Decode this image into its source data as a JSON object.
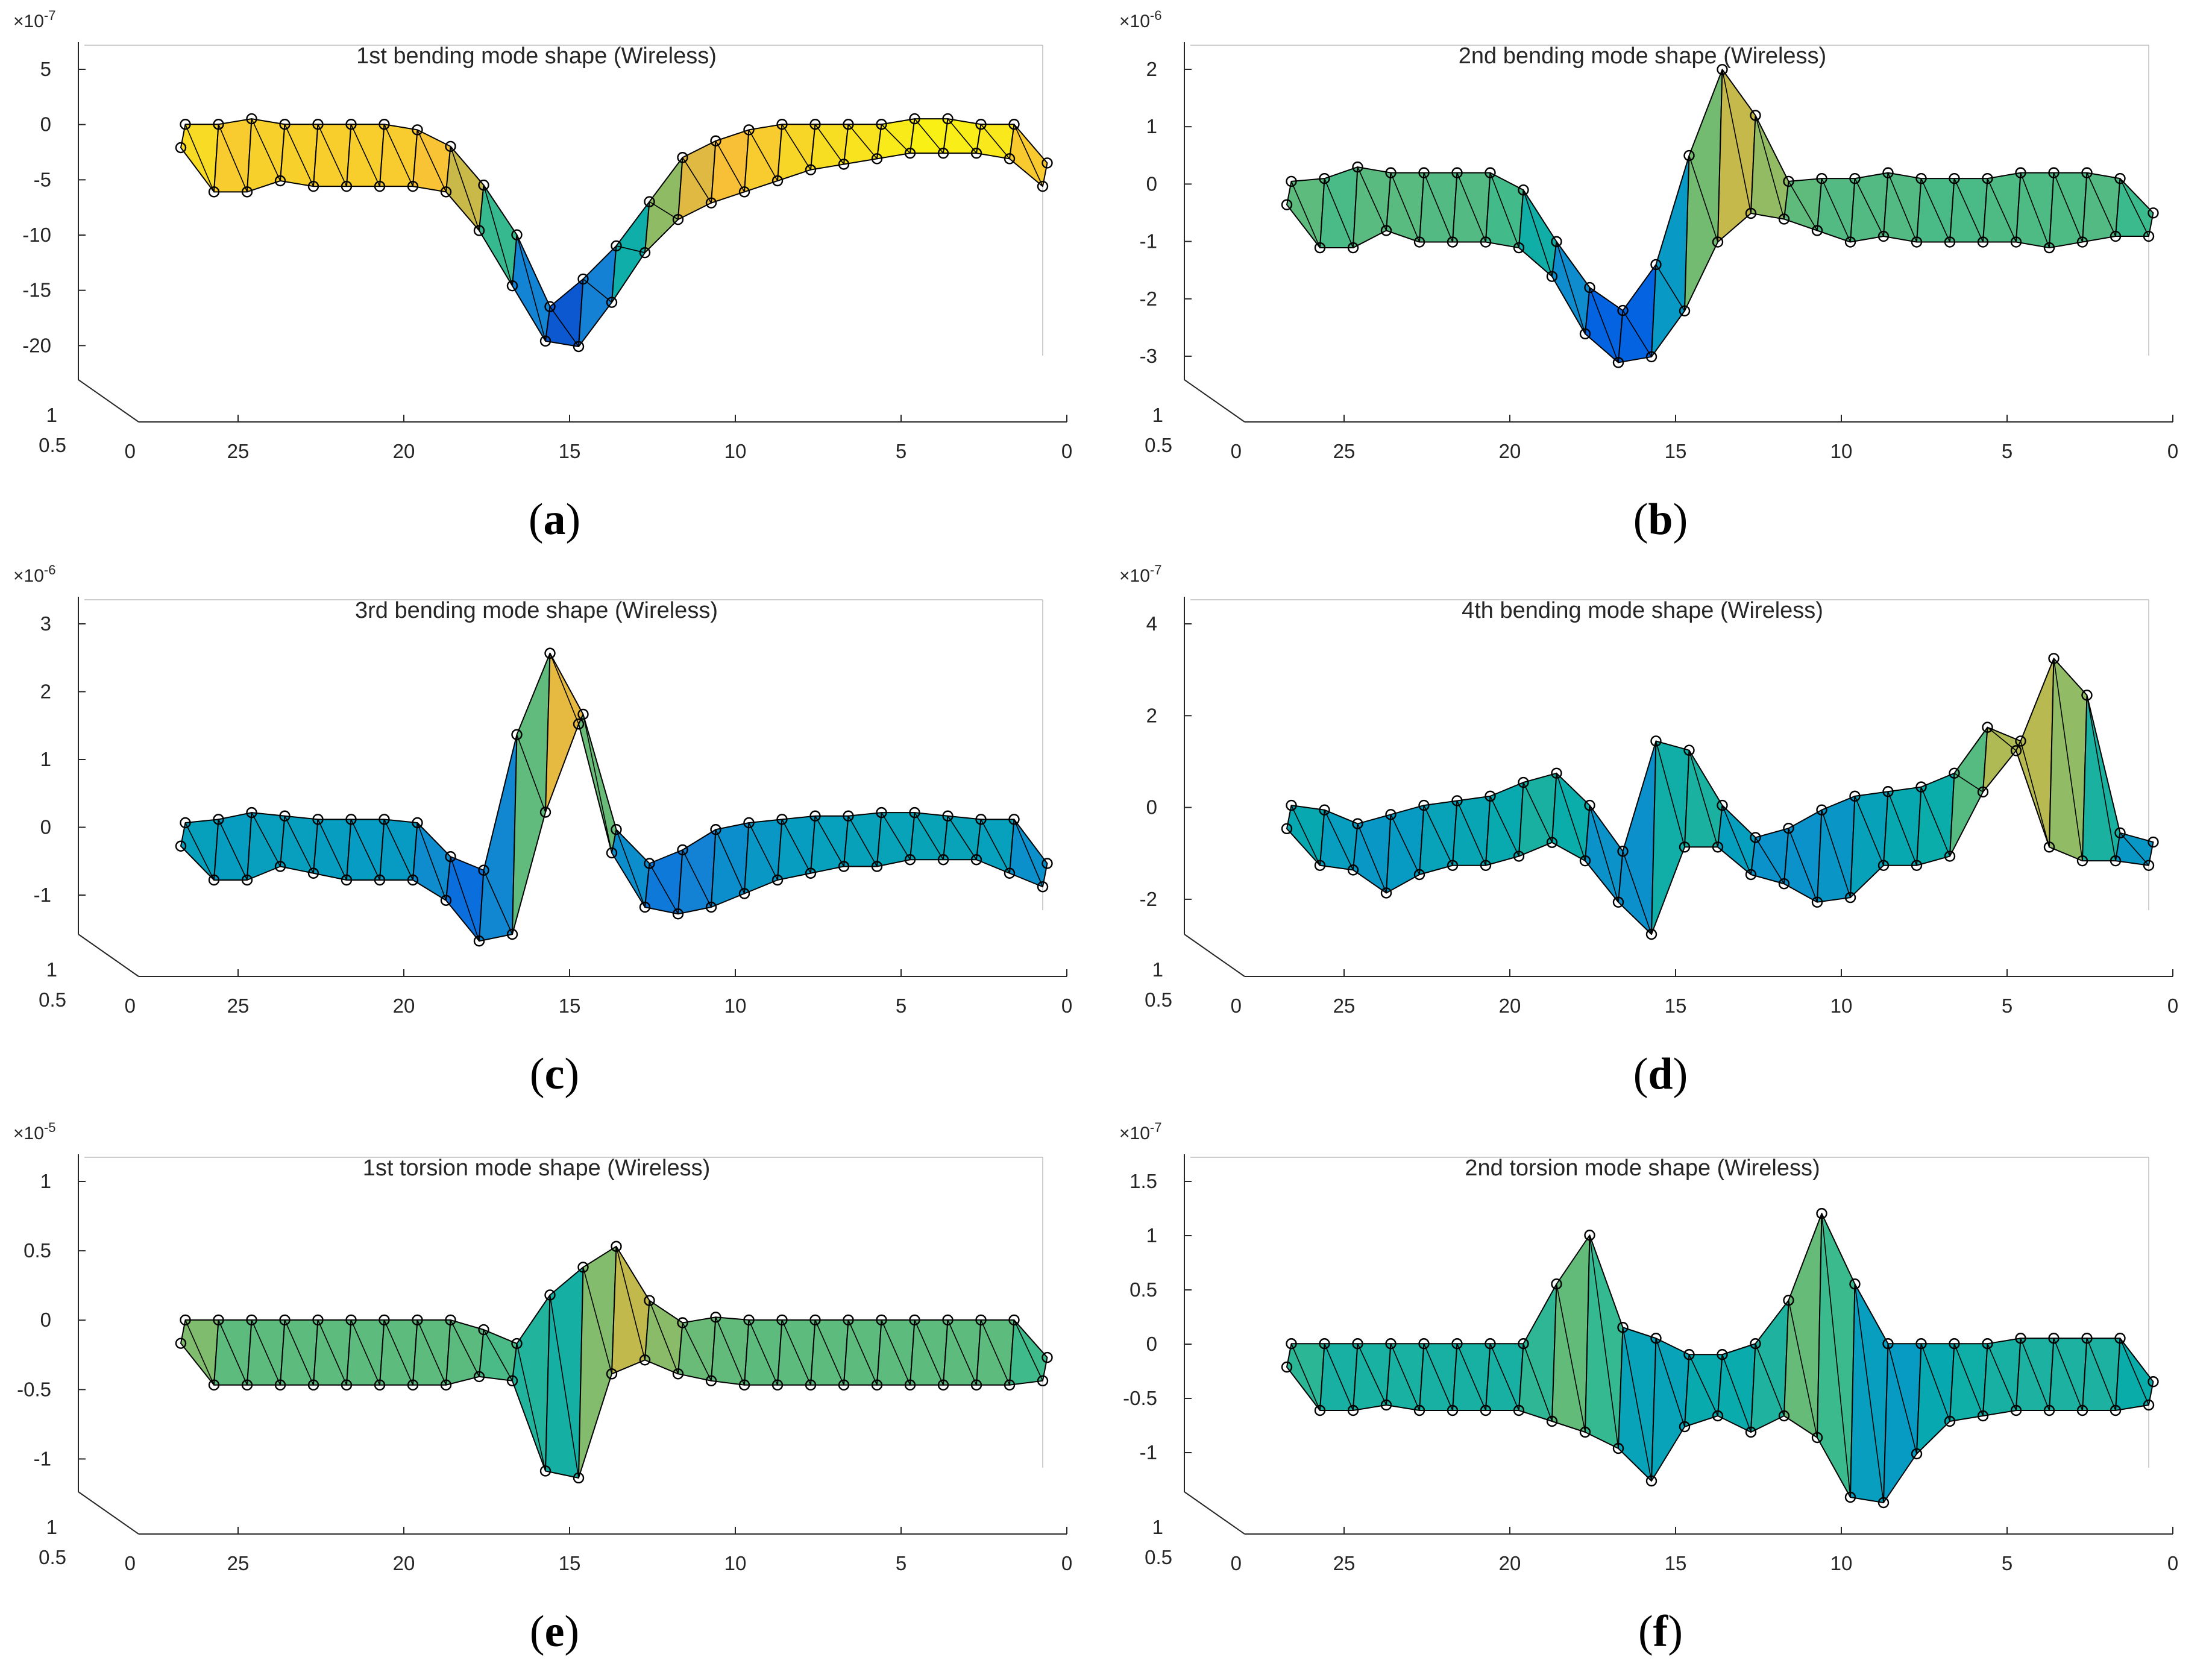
{
  "figure": {
    "panels": [
      {
        "id": "a",
        "label": "a"
      },
      {
        "id": "b",
        "label": "b"
      },
      {
        "id": "c",
        "label": "c"
      },
      {
        "id": "d",
        "label": "d"
      },
      {
        "id": "e",
        "label": "e"
      },
      {
        "id": "f",
        "label": "f"
      }
    ]
  },
  "chart_data": [
    {
      "type": "surface3d",
      "title": "1st bending mode shape (Wireless)",
      "exponent": "×10",
      "exponent_power": "-7",
      "zlim": [
        -22,
        5
      ],
      "z_ticks": [
        "5",
        "0",
        "-5",
        "-10",
        "-15",
        "-20"
      ],
      "z_tick_values": [
        5,
        0,
        -5,
        -10,
        -15,
        -20
      ],
      "x_ticks": [
        "25",
        "20",
        "15",
        "10",
        "5",
        "0"
      ],
      "x_tick_values": [
        25,
        20,
        15,
        10,
        5,
        0
      ],
      "xlim": [
        28,
        0
      ],
      "y_ticks": [
        "1",
        "0.5",
        "0"
      ],
      "x": [
        27,
        26,
        25,
        24,
        23,
        22,
        21,
        20,
        19,
        18,
        17,
        16,
        15,
        14,
        13,
        12,
        11,
        10,
        9,
        8,
        7,
        6,
        5,
        4,
        3,
        2,
        1
      ],
      "series": [
        {
          "values": [
            -1.0,
            -1.0,
            -0.5,
            -1.0,
            -1.0,
            -1.0,
            -1.0,
            -1.5,
            -3.0,
            -6.5,
            -11.0,
            -17.5,
            -15.0,
            -12.0,
            -8.0,
            -4.0,
            -2.5,
            -1.5,
            -1.0,
            -1.0,
            -1.0,
            -1.0,
            -0.5,
            -0.5,
            -1.0,
            -1.0,
            -4.5
          ]
        },
        {
          "values": [
            -1.0,
            -5.0,
            -5.0,
            -4.0,
            -4.5,
            -4.5,
            -4.5,
            -4.5,
            -5.0,
            -8.5,
            -13.5,
            -18.5,
            -19.0,
            -15.0,
            -10.5,
            -7.5,
            -6.0,
            -5.0,
            -4.0,
            -3.0,
            -2.5,
            -2.0,
            -1.5,
            -1.5,
            -1.5,
            -2.0,
            -4.5
          ]
        }
      ]
    },
    {
      "type": "surface3d",
      "title": "2nd bending mode shape (Wireless)",
      "exponent": "×10",
      "exponent_power": "-6",
      "zlim": [
        -3.2,
        2
      ],
      "z_ticks": [
        "2",
        "1",
        "0",
        "-1",
        "-2",
        "-3"
      ],
      "z_tick_values": [
        2,
        1,
        0,
        -1,
        -2,
        -3
      ],
      "x_ticks": [
        "25",
        "20",
        "15",
        "10",
        "5",
        "0"
      ],
      "x_tick_values": [
        25,
        20,
        15,
        10,
        5,
        0
      ],
      "xlim": [
        28,
        0
      ],
      "y_ticks": [
        "1",
        "0.5",
        "0"
      ],
      "x": [
        27,
        26,
        25,
        24,
        23,
        22,
        21,
        20,
        19,
        18,
        17,
        16,
        15,
        14,
        13,
        12,
        11,
        10,
        9,
        8,
        7,
        6,
        5,
        4,
        3,
        2,
        1
      ],
      "series": [
        {
          "values": [
            -0.15,
            -0.1,
            0.1,
            0.0,
            0.0,
            0.0,
            0.0,
            -0.3,
            -1.2,
            -2.0,
            -2.4,
            -1.6,
            0.3,
            1.8,
            1.0,
            -0.15,
            -0.1,
            -0.1,
            0.0,
            -0.1,
            -0.1,
            -0.1,
            0.0,
            0.0,
            0.0,
            -0.1,
            -0.7
          ]
        },
        {
          "values": [
            -0.15,
            -0.9,
            -0.9,
            -0.6,
            -0.8,
            -0.8,
            -0.8,
            -0.9,
            -1.4,
            -2.4,
            -2.9,
            -2.8,
            -2.0,
            -0.8,
            -0.3,
            -0.4,
            -0.6,
            -0.8,
            -0.7,
            -0.8,
            -0.8,
            -0.8,
            -0.8,
            -0.9,
            -0.8,
            -0.7,
            -0.7
          ]
        }
      ]
    },
    {
      "type": "surface3d",
      "title": "3rd bending mode shape (Wireless)",
      "exponent": "×10",
      "exponent_power": "-6",
      "zlim": [
        -1.4,
        3
      ],
      "z_ticks": [
        "3",
        "2",
        "1",
        "0",
        "-1"
      ],
      "z_tick_values": [
        3,
        2,
        1,
        0,
        -1
      ],
      "x_ticks": [
        "25",
        "20",
        "15",
        "10",
        "5",
        "0"
      ],
      "x_tick_values": [
        25,
        20,
        15,
        10,
        5,
        0
      ],
      "xlim": [
        28,
        0
      ],
      "y_ticks": [
        "1",
        "0.5",
        "0"
      ],
      "x": [
        27,
        26,
        25,
        24,
        23,
        22,
        21,
        20,
        19,
        18,
        17,
        16,
        15,
        14,
        13,
        12,
        11,
        10,
        9,
        8,
        7,
        6,
        5,
        4,
        3,
        2,
        1
      ],
      "series": [
        {
          "values": [
            -0.1,
            -0.05,
            0.05,
            0.0,
            -0.05,
            -0.05,
            -0.05,
            -0.1,
            -0.6,
            -0.8,
            1.2,
            2.4,
            1.5,
            -0.2,
            -0.7,
            -0.5,
            -0.2,
            -0.1,
            -0.05,
            0.0,
            0.0,
            0.05,
            0.05,
            0.0,
            -0.05,
            -0.05,
            -0.7
          ]
        },
        {
          "values": [
            -0.1,
            -0.6,
            -0.6,
            -0.4,
            -0.5,
            -0.6,
            -0.6,
            -0.6,
            -0.9,
            -1.5,
            -1.4,
            0.4,
            1.7,
            -0.2,
            -1.0,
            -1.1,
            -1.0,
            -0.8,
            -0.6,
            -0.5,
            -0.4,
            -0.4,
            -0.3,
            -0.3,
            -0.3,
            -0.5,
            -0.7
          ]
        }
      ]
    },
    {
      "type": "surface3d",
      "title": "4th bending mode shape (Wireless)",
      "exponent": "×10",
      "exponent_power": "-7",
      "zlim": [
        -2.5,
        4
      ],
      "z_ticks": [
        "4",
        "2",
        "0",
        "-2"
      ],
      "z_tick_values": [
        4,
        2,
        0,
        -2
      ],
      "x_ticks": [
        "25",
        "20",
        "15",
        "10",
        "5",
        "0"
      ],
      "x_tick_values": [
        25,
        20,
        15,
        10,
        5,
        0
      ],
      "xlim": [
        28,
        0
      ],
      "y_ticks": [
        "1",
        "0.5",
        "0"
      ],
      "x": [
        27,
        26,
        25,
        24,
        23,
        22,
        21,
        20,
        19,
        18,
        17,
        16,
        15,
        14,
        13,
        12,
        11,
        10,
        9,
        8,
        7,
        6,
        5,
        4,
        3,
        2,
        1
      ],
      "series": [
        {
          "values": [
            -0.2,
            -0.3,
            -0.6,
            -0.4,
            -0.2,
            -0.1,
            0.0,
            0.3,
            0.5,
            -0.2,
            -1.2,
            1.2,
            1.0,
            -0.2,
            -0.9,
            -0.7,
            -0.3,
            0.0,
            0.1,
            0.2,
            0.5,
            1.5,
            1.2,
            3.0,
            2.2,
            -0.8,
            -1.0
          ]
        },
        {
          "values": [
            -0.2,
            -1.0,
            -1.1,
            -1.6,
            -1.2,
            -1.0,
            -1.0,
            -0.8,
            -0.5,
            -0.9,
            -1.8,
            -2.5,
            -0.6,
            -0.6,
            -1.2,
            -1.4,
            -1.8,
            -1.7,
            -1.0,
            -1.0,
            -0.8,
            0.6,
            1.5,
            -0.6,
            -0.9,
            -0.9,
            -1.0
          ]
        }
      ]
    },
    {
      "type": "surface3d",
      "title": "1st torsion mode shape (Wireless)",
      "exponent": "×10",
      "exponent_power": "-5",
      "zlim": [
        -1.15,
        1
      ],
      "z_ticks": [
        "1",
        "0.5",
        "0",
        "-0.5",
        "-1"
      ],
      "z_tick_values": [
        1,
        0.5,
        0,
        -0.5,
        -1
      ],
      "x_ticks": [
        "25",
        "20",
        "15",
        "10",
        "5",
        "0"
      ],
      "x_tick_values": [
        25,
        20,
        15,
        10,
        5,
        0
      ],
      "xlim": [
        28,
        0
      ],
      "y_ticks": [
        "1",
        "0.5",
        "0"
      ],
      "x": [
        27,
        26,
        25,
        24,
        23,
        22,
        21,
        20,
        19,
        18,
        17,
        16,
        15,
        14,
        13,
        12,
        11,
        10,
        9,
        8,
        7,
        6,
        5,
        4,
        3,
        2,
        1
      ],
      "series": [
        {
          "values": [
            -0.08,
            -0.08,
            -0.08,
            -0.08,
            -0.08,
            -0.08,
            -0.08,
            -0.08,
            -0.08,
            -0.15,
            -0.25,
            0.1,
            0.3,
            0.45,
            0.06,
            -0.1,
            -0.06,
            -0.08,
            -0.08,
            -0.08,
            -0.08,
            -0.08,
            -0.08,
            -0.08,
            -0.08,
            -0.08,
            -0.35
          ]
        },
        {
          "values": [
            -0.08,
            -0.38,
            -0.38,
            -0.38,
            -0.38,
            -0.38,
            -0.38,
            -0.38,
            -0.38,
            -0.32,
            -0.35,
            -1.0,
            -1.05,
            -0.3,
            -0.2,
            -0.3,
            -0.35,
            -0.38,
            -0.38,
            -0.38,
            -0.38,
            -0.38,
            -0.38,
            -0.38,
            -0.38,
            -0.38,
            -0.35
          ]
        }
      ]
    },
    {
      "type": "surface3d",
      "title": "2nd torsion mode shape (Wireless)",
      "exponent": "×10",
      "exponent_power": "-7",
      "zlim": [
        -1.25,
        1.5
      ],
      "z_ticks": [
        "1.5",
        "1",
        "0.5",
        "0",
        "-0.5",
        "-1"
      ],
      "z_tick_values": [
        1.5,
        1,
        0.5,
        0,
        -0.5,
        -1
      ],
      "x_ticks": [
        "25",
        "20",
        "15",
        "10",
        "5",
        "0"
      ],
      "x_tick_values": [
        25,
        20,
        15,
        10,
        5,
        0
      ],
      "xlim": [
        28,
        0
      ],
      "y_ticks": [
        "1",
        "0.5",
        "0"
      ],
      "x": [
        27,
        26,
        25,
        24,
        23,
        22,
        21,
        20,
        19,
        18,
        17,
        16,
        15,
        14,
        13,
        12,
        11,
        10,
        9,
        8,
        7,
        6,
        5,
        4,
        3,
        2,
        1
      ],
      "series": [
        {
          "values": [
            -0.1,
            -0.1,
            -0.1,
            -0.1,
            -0.1,
            -0.1,
            -0.1,
            -0.1,
            0.45,
            0.9,
            0.05,
            -0.05,
            -0.2,
            -0.2,
            -0.1,
            0.3,
            1.1,
            0.45,
            -0.1,
            -0.1,
            -0.1,
            -0.1,
            -0.05,
            -0.05,
            -0.05,
            -0.05,
            -0.45
          ]
        },
        {
          "values": [
            -0.1,
            -0.5,
            -0.5,
            -0.45,
            -0.5,
            -0.5,
            -0.5,
            -0.5,
            -0.6,
            -0.7,
            -0.85,
            -1.15,
            -0.65,
            -0.55,
            -0.7,
            -0.55,
            -0.75,
            -1.3,
            -1.35,
            -0.9,
            -0.6,
            -0.55,
            -0.5,
            -0.5,
            -0.5,
            -0.5,
            -0.45
          ]
        }
      ]
    }
  ]
}
